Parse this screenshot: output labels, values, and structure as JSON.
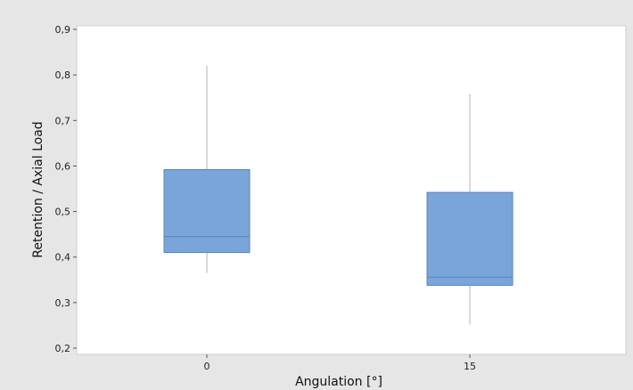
{
  "chart_data": {
    "type": "box",
    "xlabel": "Angulation [°]",
    "ylabel": "Retention / Axial Load",
    "categories": [
      "0",
      "15"
    ],
    "ylim": [
      0.2,
      0.9
    ],
    "yticks": [
      "0,2",
      "0,3",
      "0,4",
      "0,5",
      "0,6",
      "0,7",
      "0,8",
      "0,9"
    ],
    "boxes": [
      {
        "category": "0",
        "min": 0.365,
        "q1": 0.41,
        "median": 0.445,
        "q3": 0.592,
        "max": 0.82
      },
      {
        "category": "15",
        "min": 0.252,
        "q1": 0.338,
        "median": 0.356,
        "q3": 0.542,
        "max": 0.758
      }
    ],
    "grid": false,
    "colors": {
      "box_fill": "#7aa5db",
      "box_stroke": "#5a82b8",
      "whisker": "#cccccc",
      "plot_bg": "#ffffff",
      "outer_bg": "#e6e6e6"
    }
  }
}
